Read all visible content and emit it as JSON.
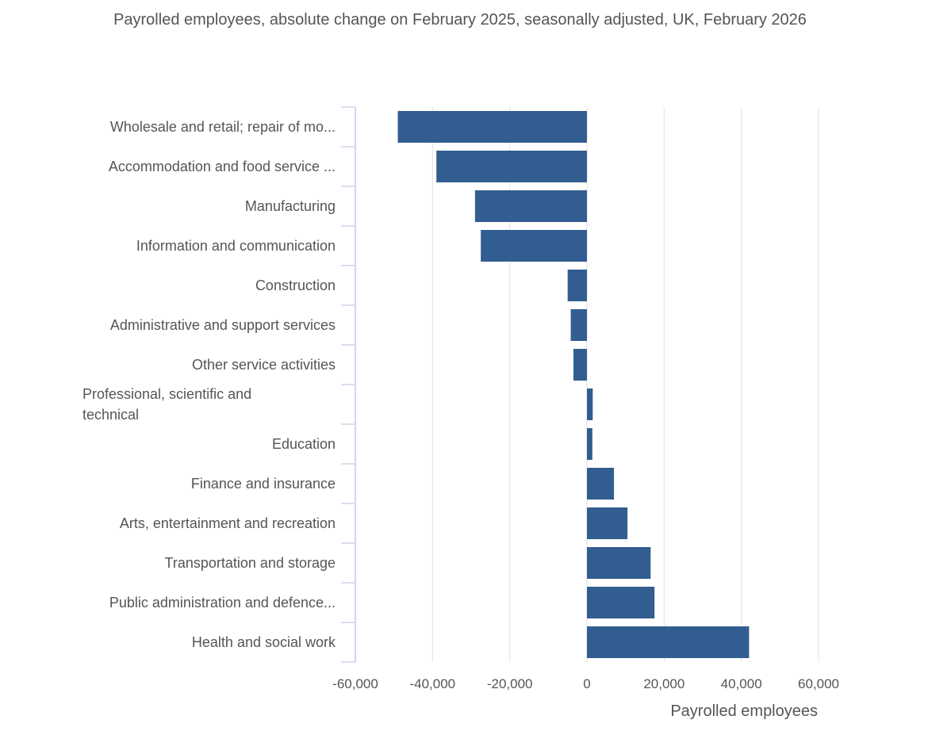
{
  "chart_data": {
    "type": "bar",
    "orientation": "horizontal",
    "subtitle": "Payrolled employees, absolute change on February 2025, seasonally adjusted, UK, February 2026",
    "categories": [
      "Wholesale and retail; repair of mo...",
      "Accommodation and food service ...",
      "Manufacturing",
      "Information and communication",
      "Construction",
      "Administrative and support services",
      "Other service activities",
      "Professional, scientific and technical",
      "Education",
      "Finance and insurance",
      "Arts, entertainment and recreation",
      "Transportation and storage",
      "Public administration and defence...",
      "Health and social work"
    ],
    "category_label_lines": [
      [
        "Wholesale and retail; repair of mo..."
      ],
      [
        "Accommodation and food service ..."
      ],
      [
        "Manufacturing"
      ],
      [
        "Information and communication"
      ],
      [
        "Construction"
      ],
      [
        "Administrative and support services"
      ],
      [
        "Other service activities"
      ],
      [
        "Professional, scientific and",
        "technical"
      ],
      [
        "Education"
      ],
      [
        "Finance and insurance"
      ],
      [
        "Arts, entertainment and recreation"
      ],
      [
        "Transportation and storage"
      ],
      [
        "Public administration and defence..."
      ],
      [
        "Health and social work"
      ]
    ],
    "values": [
      -49000,
      -39000,
      -29000,
      -27500,
      -5000,
      -4200,
      -3500,
      1500,
      1400,
      7000,
      10500,
      16500,
      17500,
      42000
    ],
    "xlabel": "Payrolled employees",
    "xlim": [
      -60000,
      60000
    ],
    "xticks": [
      -60000,
      -40000,
      -20000,
      0,
      20000,
      40000,
      60000
    ],
    "xtick_labels": [
      "-60,000",
      "-40,000",
      "-20,000",
      "0",
      "20,000",
      "40,000",
      "60,000"
    ],
    "grid": "vertical",
    "colors": {
      "bar": "#325d90",
      "grid": "#e2e2e2",
      "axis": "#d4d4ec",
      "text": "#555555"
    }
  }
}
